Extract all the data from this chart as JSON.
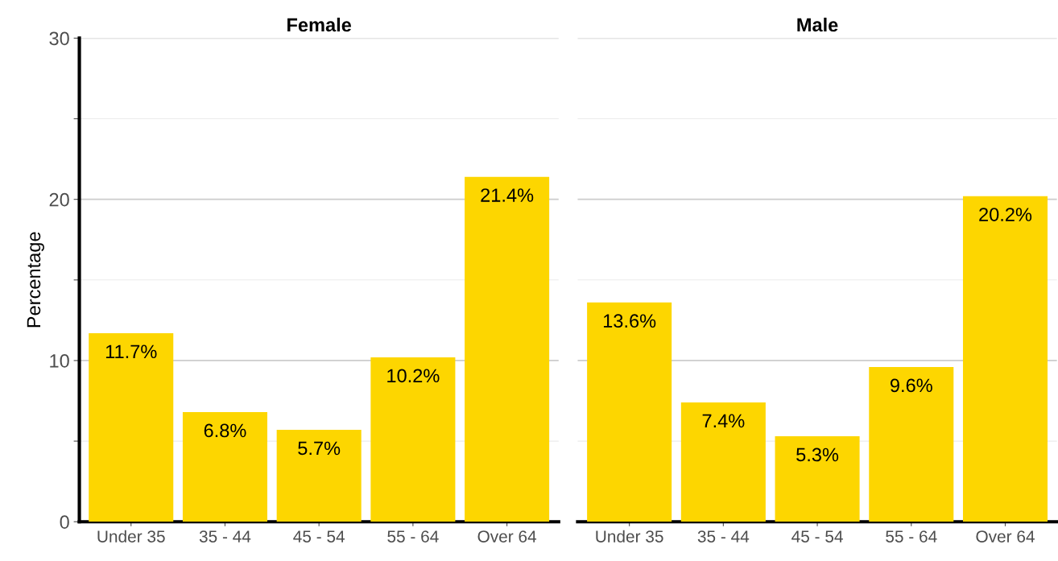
{
  "chart_data": [
    {
      "type": "bar",
      "title": "Female",
      "ylabel": "Percentage",
      "categories": [
        "Under 35",
        "35 - 44",
        "45 - 54",
        "55 - 64",
        "Over 64"
      ],
      "values": [
        11.7,
        6.8,
        5.7,
        10.2,
        21.4
      ],
      "value_labels": [
        "11.7%",
        "6.8%",
        "5.7%",
        "10.2%",
        "21.4%"
      ],
      "color": "#fdd600",
      "ylim": [
        0,
        30
      ],
      "yticks": [
        0,
        {
          "value": 5,
          "label": null
        },
        10,
        {
          "value": 15,
          "label": null
        },
        20,
        {
          "value": 25,
          "label": null
        },
        30
      ],
      "grid": "y"
    },
    {
      "type": "bar",
      "title": "Male",
      "categories": [
        "Under 35",
        "35 - 44",
        "45 - 54",
        "55 - 64",
        "Over 64"
      ],
      "values": [
        13.6,
        7.4,
        5.3,
        9.6,
        20.2
      ],
      "value_labels": [
        "13.6%",
        "7.4%",
        "5.3%",
        "9.6%",
        "20.2%"
      ],
      "color": "#fdd600",
      "ylim": [
        0,
        30
      ],
      "yticks": [
        0,
        {
          "value": 5,
          "label": null
        },
        10,
        {
          "value": 15,
          "label": null
        },
        20,
        {
          "value": 25,
          "label": null
        },
        30
      ],
      "grid": "y",
      "tick_labels": "x"
    }
  ]
}
